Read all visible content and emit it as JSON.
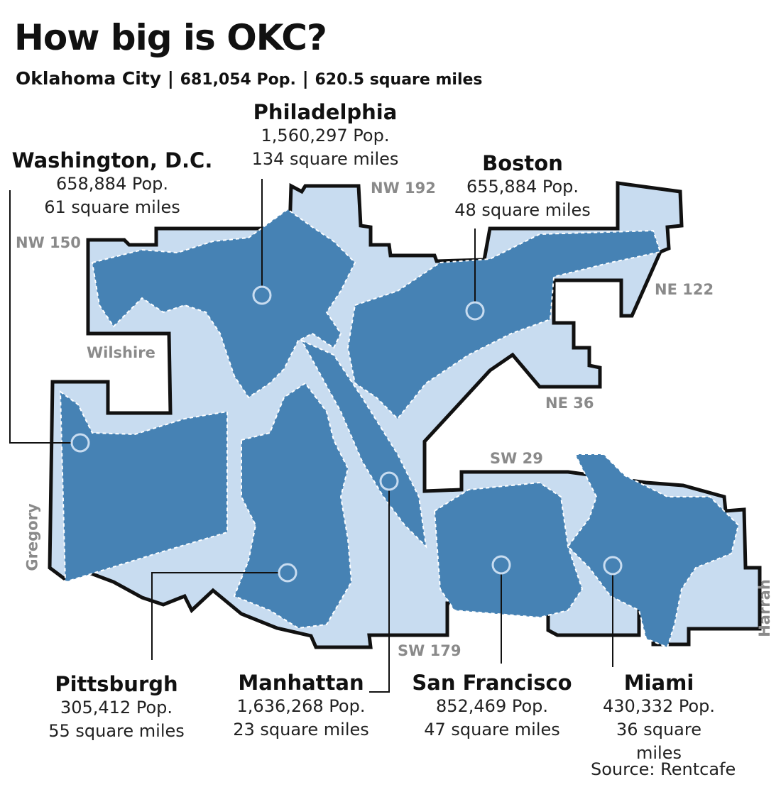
{
  "title": "How big is OKC?",
  "subtitle": {
    "city": "Oklahoma City",
    "sep": "|",
    "population": "681,054 Pop.",
    "area": "620.5 square miles"
  },
  "colors": {
    "okc_area": "#c8dcf0",
    "overlay_city": "#4682b4",
    "boundary": "#111111"
  },
  "cities": [
    {
      "name": "Philadelphia",
      "population": "1,560,297 Pop.",
      "area": "134 square miles"
    },
    {
      "name": "Washington, D.C.",
      "population": "658,884 Pop.",
      "area": "61 square miles"
    },
    {
      "name": "Boston",
      "population": "655,884 Pop.",
      "area": "48 square miles"
    },
    {
      "name": "Pittsburgh",
      "population": "305,412 Pop.",
      "area": "55 square miles"
    },
    {
      "name": "Manhattan",
      "population": "1,636,268 Pop.",
      "area": "23 square miles"
    },
    {
      "name": "San Francisco",
      "population": "852,469 Pop.",
      "area": "47 square miles"
    },
    {
      "name": "Miami",
      "population": "430,332 Pop.",
      "area": "36 square miles"
    }
  ],
  "roads": [
    "NW 192",
    "NW 150",
    "NE 122",
    "Wilshire",
    "NE 36",
    "SW 29",
    "Gregory",
    "Harrah",
    "SW 179"
  ],
  "source": "Source: Rentcafe"
}
